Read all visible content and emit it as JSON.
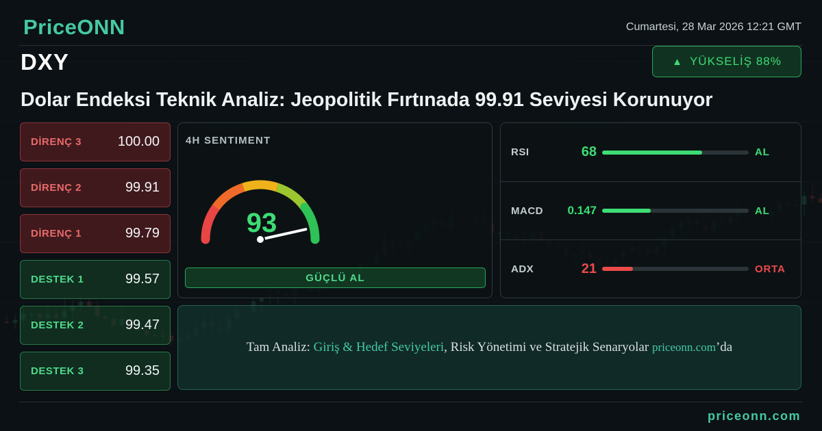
{
  "brand": {
    "logo": "PriceONN",
    "footer_site": "priceonn.com",
    "accent": "#45c9a4"
  },
  "header": {
    "datetime": "Cumartesi, 28 Mar 2026 12:21 GMT",
    "symbol": "DXY",
    "trend_arrow": "▲",
    "trend_label": "YÜKSELİŞ 88%",
    "headline": "Dolar Endeksi Teknik Analiz: Jeopolitik Fırtınada 99.91 Seviyesi Korunuyor"
  },
  "levels": [
    {
      "label": "DİRENÇ 3",
      "value": "100.00",
      "kind": "resistance"
    },
    {
      "label": "DİRENÇ 2",
      "value": "99.91",
      "kind": "resistance"
    },
    {
      "label": "DİRENÇ 1",
      "value": "99.79",
      "kind": "resistance"
    },
    {
      "label": "DESTEK 1",
      "value": "99.57",
      "kind": "support"
    },
    {
      "label": "DESTEK 2",
      "value": "99.47",
      "kind": "support"
    },
    {
      "label": "DESTEK 3",
      "value": "99.35",
      "kind": "support"
    }
  ],
  "sentiment": {
    "title": "4H SENTIMENT",
    "score": "93",
    "score_fraction": 0.93,
    "verdict": "GÜÇLÜ AL"
  },
  "indicators": [
    {
      "name": "RSI",
      "value": "68",
      "fill_fraction": 0.68,
      "signal": "AL",
      "color": "#3ddc74"
    },
    {
      "name": "MACD",
      "value": "0.147",
      "fill_fraction": 0.33,
      "signal": "AL",
      "color": "#3ddc74"
    },
    {
      "name": "ADX",
      "value": "21",
      "fill_fraction": 0.21,
      "signal": "ORTA",
      "color": "#ec4a4a"
    }
  ],
  "cta": {
    "prefix": "Tam Analiz: ",
    "highlight": "Giriş & Hedef Seviyeleri",
    "middle": ", Risk Yönetimi ve Stratejik Senaryolar ",
    "domain": "priceonn.com",
    "suffix": "’da"
  },
  "colors": {
    "positive": "#3ddc74",
    "negative": "#ec4a4a",
    "background": "#0b1114"
  }
}
